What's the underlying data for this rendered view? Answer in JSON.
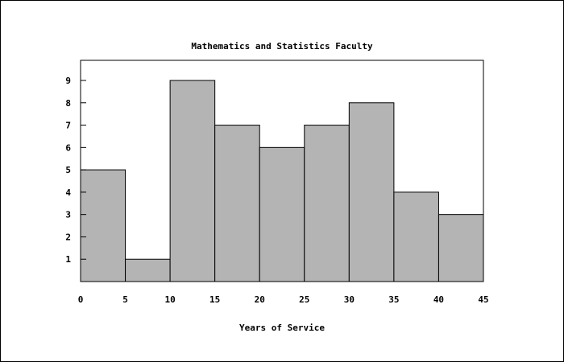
{
  "chart_data": {
    "type": "bar",
    "title": "Mathematics and Statistics Faculty",
    "xlabel": "Years of Service",
    "ylabel": "",
    "bin_edges": [
      0,
      5,
      10,
      15,
      20,
      25,
      30,
      35,
      40,
      45
    ],
    "values": [
      5,
      1,
      9,
      7,
      6,
      7,
      8,
      4,
      3
    ],
    "x_ticks": [
      "0",
      "5",
      "10",
      "15",
      "20",
      "25",
      "30",
      "35",
      "40",
      "45"
    ],
    "y_ticks": [
      "1",
      "2",
      "3",
      "4",
      "5",
      "6",
      "7",
      "8",
      "9"
    ],
    "xlim": [
      0,
      45
    ],
    "ylim": [
      0,
      9.9
    ],
    "grid": false,
    "bar_color": "#b4b4b4",
    "edge_color": "#000000"
  }
}
